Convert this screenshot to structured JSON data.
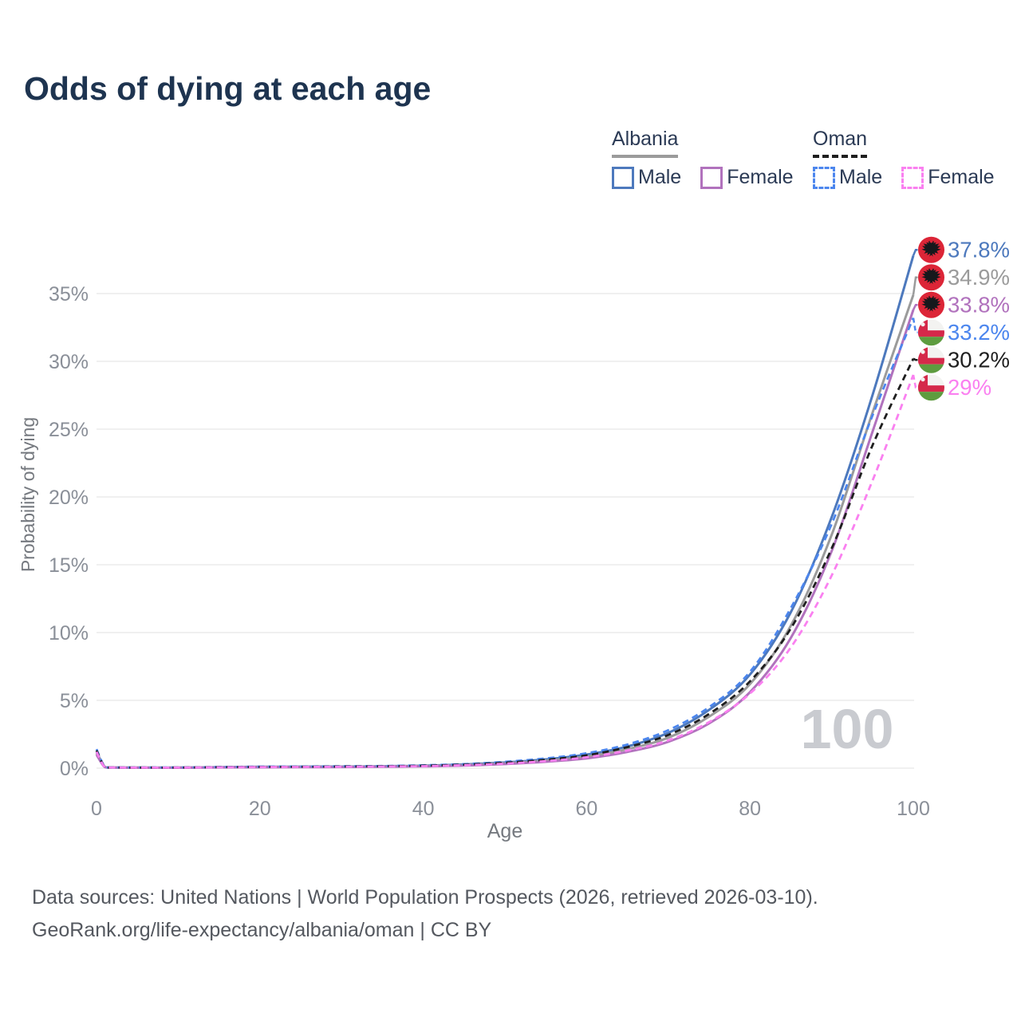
{
  "title": "Odds of dying at each age",
  "legend": {
    "groups": [
      {
        "label": "Albania",
        "line": {
          "style": "solid",
          "color": "#9b9b9b"
        },
        "items": [
          {
            "label": "Male",
            "color": "#4d79bd",
            "dashed": false
          },
          {
            "label": "Female",
            "color": "#b172bd",
            "dashed": false
          }
        ]
      },
      {
        "label": "Oman",
        "line": {
          "style": "dashed",
          "color": "#1f1f1f"
        },
        "items": [
          {
            "label": "Male",
            "color": "#4c86ee",
            "dashed": true
          },
          {
            "label": "Female",
            "color": "#fa80f0",
            "dashed": true
          }
        ]
      }
    ]
  },
  "chart_data": {
    "type": "line",
    "title": "Odds of dying at each age",
    "xlabel": "Age",
    "ylabel": "Probability of dying",
    "xlim": [
      0,
      100
    ],
    "ylim_pct": [
      0,
      38
    ],
    "grid": true,
    "watermark": "100",
    "y_ticks": [
      {
        "value": 0,
        "label": "0%"
      },
      {
        "value": 5,
        "label": "5%"
      },
      {
        "value": 10,
        "label": "10%"
      },
      {
        "value": 15,
        "label": "15%"
      },
      {
        "value": 20,
        "label": "20%"
      },
      {
        "value": 25,
        "label": "25%"
      },
      {
        "value": 30,
        "label": "30%"
      },
      {
        "value": 35,
        "label": "35%"
      }
    ],
    "x_ticks": [
      {
        "value": 0,
        "label": "0"
      },
      {
        "value": 20,
        "label": "20"
      },
      {
        "value": 40,
        "label": "40"
      },
      {
        "value": 60,
        "label": "60"
      },
      {
        "value": 80,
        "label": "80"
      },
      {
        "value": 100,
        "label": "100"
      }
    ],
    "ages": [
      0,
      1,
      2,
      5,
      10,
      15,
      20,
      25,
      30,
      35,
      40,
      45,
      50,
      55,
      60,
      65,
      70,
      75,
      80,
      85,
      90,
      95,
      100
    ],
    "series": [
      {
        "name": "Albania Male",
        "country": "Albania",
        "sex": "male",
        "flag": "albania",
        "icon": "albania-flag-icon",
        "color": "#4d79bd",
        "dashed": false,
        "end_label": "37.8%",
        "end_value": 37.8,
        "values": [
          1.2,
          0.1,
          0.05,
          0.04,
          0.04,
          0.07,
          0.1,
          0.11,
          0.12,
          0.14,
          0.18,
          0.27,
          0.42,
          0.65,
          1.0,
          1.6,
          2.6,
          4.3,
          6.9,
          11.5,
          18.5,
          27.5,
          37.8
        ]
      },
      {
        "name": "Albania",
        "country": "Albania",
        "sex": "both",
        "flag": "albania",
        "icon": "albania-flag-icon",
        "color": "#9b9b9b",
        "dashed": false,
        "end_label": "34.9%",
        "end_value": 34.9,
        "values": [
          1.1,
          0.09,
          0.05,
          0.04,
          0.04,
          0.06,
          0.08,
          0.09,
          0.1,
          0.12,
          0.16,
          0.23,
          0.36,
          0.56,
          0.85,
          1.4,
          2.25,
          3.8,
          6.2,
          10.5,
          17.2,
          26.2,
          34.9
        ]
      },
      {
        "name": "Albania Female",
        "country": "Albania",
        "sex": "female",
        "flag": "albania",
        "icon": "albania-flag-icon",
        "color": "#b172bd",
        "dashed": false,
        "end_label": "33.8%",
        "end_value": 33.8,
        "values": [
          1.0,
          0.08,
          0.04,
          0.03,
          0.03,
          0.05,
          0.06,
          0.07,
          0.08,
          0.1,
          0.13,
          0.19,
          0.3,
          0.47,
          0.72,
          1.2,
          1.95,
          3.3,
          5.6,
          9.6,
          16.0,
          24.8,
          33.8
        ]
      },
      {
        "name": "Oman Male",
        "country": "Oman",
        "sex": "male",
        "flag": "oman",
        "icon": "oman-flag-icon",
        "color": "#4c86ee",
        "dashed": true,
        "end_label": "33.2%",
        "end_value": 33.2,
        "values": [
          1.4,
          0.12,
          0.06,
          0.05,
          0.05,
          0.08,
          0.11,
          0.12,
          0.14,
          0.16,
          0.21,
          0.3,
          0.47,
          0.72,
          1.1,
          1.75,
          2.8,
          4.5,
          7.1,
          11.8,
          18.0,
          26.0,
          33.2
        ]
      },
      {
        "name": "Oman",
        "country": "Oman",
        "sex": "both",
        "flag": "oman",
        "icon": "oman-flag-icon",
        "color": "#1f1f1f",
        "dashed": true,
        "end_label": "30.2%",
        "end_value": 30.2,
        "values": [
          1.3,
          0.1,
          0.05,
          0.04,
          0.04,
          0.07,
          0.09,
          0.1,
          0.12,
          0.14,
          0.18,
          0.26,
          0.4,
          0.62,
          0.95,
          1.55,
          2.45,
          4.0,
          6.4,
          10.3,
          16.2,
          23.8,
          30.2
        ]
      },
      {
        "name": "Oman Female",
        "country": "Oman",
        "sex": "female",
        "flag": "oman",
        "icon": "oman-flag-icon",
        "color": "#fa80f0",
        "dashed": true,
        "end_label": "29%",
        "end_value": 29.0,
        "values": [
          1.2,
          0.09,
          0.05,
          0.04,
          0.04,
          0.06,
          0.08,
          0.09,
          0.1,
          0.12,
          0.15,
          0.22,
          0.33,
          0.52,
          0.8,
          1.3,
          2.05,
          3.4,
          5.5,
          8.9,
          14.2,
          21.2,
          29.0
        ]
      }
    ],
    "colors": {
      "albania_flag_red": "#dc2537",
      "oman_flag_red": "#d5294a",
      "oman_flag_green": "#5e9c3f",
      "grid": "#ececec",
      "axis_text": "#8a8f98",
      "watermark": "#c9cbd0"
    }
  },
  "footer": {
    "line1": "Data sources: United Nations | World Population Prospects (2026, retrieved 2026-03-10).",
    "line2": "GeoRank.org/life-expectancy/albania/oman | CC BY"
  }
}
